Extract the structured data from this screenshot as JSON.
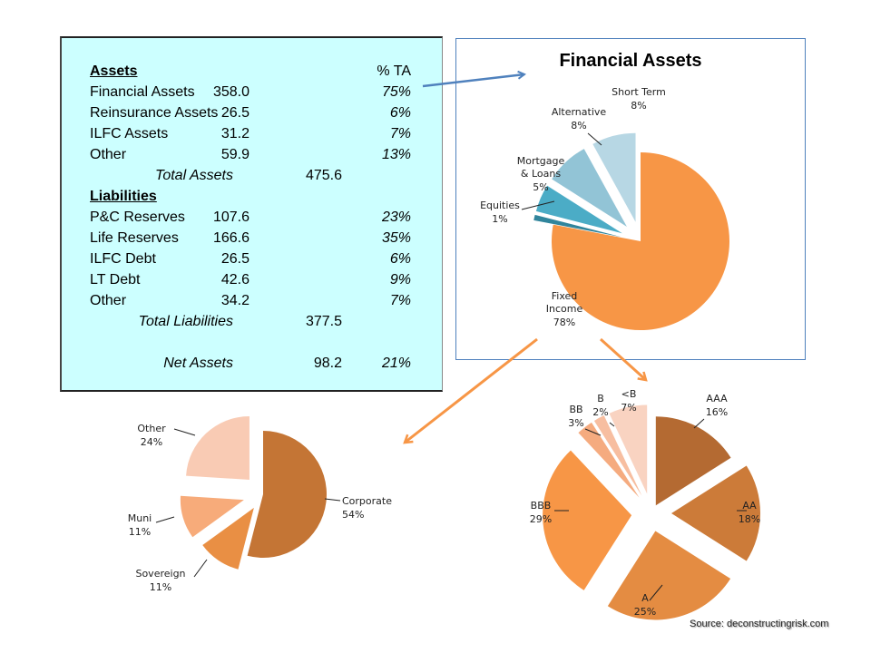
{
  "balance_sheet": {
    "assets_header": "Assets",
    "pct_header": "% TA",
    "assets": [
      {
        "label": "Financial Assets",
        "value": "358.0",
        "pct": "75%"
      },
      {
        "label": "Reinsurance Assets",
        "value": "26.5",
        "pct": "6%"
      },
      {
        "label": "ILFC Assets",
        "value": "31.2",
        "pct": "7%"
      },
      {
        "label": "Other",
        "value": "59.9",
        "pct": "13%"
      }
    ],
    "total_assets": {
      "label": "Total Assets",
      "value": "475.6"
    },
    "liabilities_header": "Liabilities",
    "liabilities": [
      {
        "label": "P&C Reserves",
        "value": "107.6",
        "pct": "23%"
      },
      {
        "label": "Life Reserves",
        "value": "166.6",
        "pct": "35%"
      },
      {
        "label": "ILFC Debt",
        "value": "26.5",
        "pct": "6%"
      },
      {
        "label": "LT Debt",
        "value": "42.6",
        "pct": "9%"
      },
      {
        "label": "Other",
        "value": "34.2",
        "pct": "7%"
      }
    ],
    "total_liabilities": {
      "label": "Total Liabilities",
      "value": "377.5"
    },
    "net_assets": {
      "label": "Net Assets",
      "value": "98.2",
      "pct": "21%"
    }
  },
  "chart_data": [
    {
      "type": "pie",
      "title": "Financial Assets",
      "slices": [
        {
          "label": "Fixed Income",
          "pct_label": "78%",
          "value": 78,
          "color": "#f79646"
        },
        {
          "label": "Equities",
          "pct_label": "1%",
          "value": 1,
          "color": "#31859c"
        },
        {
          "label": "Mortgage & Loans",
          "label_lines": [
            "Mortgage",
            "& Loans"
          ],
          "pct_label": "5%",
          "value": 5,
          "color": "#4bacc6"
        },
        {
          "label": "Alternative",
          "pct_label": "8%",
          "value": 8,
          "color": "#92c4d6"
        },
        {
          "label": "Short Term",
          "pct_label": "8%",
          "value": 8,
          "color": "#b7d7e4"
        }
      ]
    },
    {
      "type": "pie",
      "title": "",
      "slices": [
        {
          "label": "Corporate",
          "pct_label": "54%",
          "value": 54,
          "color": "#c47535"
        },
        {
          "label": "Sovereign",
          "pct_label": "11%",
          "value": 11,
          "color": "#e98f44"
        },
        {
          "label": "Muni",
          "pct_label": "11%",
          "value": 11,
          "color": "#f7ab7a"
        },
        {
          "label": "Other",
          "pct_label": "24%",
          "value": 24,
          "color": "#f9cbb4"
        }
      ]
    },
    {
      "type": "pie",
      "title": "",
      "slices": [
        {
          "label": "AAA",
          "pct_label": "16%",
          "value": 16,
          "color": "#b46a32"
        },
        {
          "label": "AA",
          "pct_label": "18%",
          "value": 18,
          "color": "#cc7b39"
        },
        {
          "label": "A",
          "pct_label": "25%",
          "value": 25,
          "color": "#e48c42"
        },
        {
          "label": "BBB",
          "pct_label": "29%",
          "value": 29,
          "color": "#f79646"
        },
        {
          "label": "BB",
          "pct_label": "3%",
          "value": 3,
          "color": "#f5ab7f"
        },
        {
          "label": "B",
          "pct_label": "2%",
          "value": 2,
          "color": "#f7bea0"
        },
        {
          "label": "<B",
          "pct_label": "7%",
          "value": 7,
          "color": "#f9d3c1"
        }
      ]
    }
  ],
  "source": "Source: deconstructingrisk.com",
  "colors": {
    "arrow_blue": "#4f81bd",
    "arrow_orange": "#f79646",
    "table_bg": "#ccffff"
  }
}
